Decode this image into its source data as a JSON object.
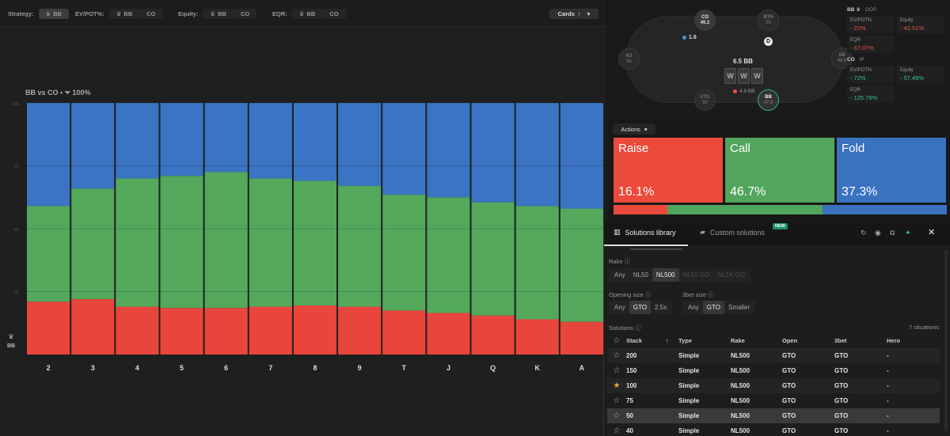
{
  "toolbar": {
    "strategy_label": "Strategy:",
    "strategy_options": [
      "BB"
    ],
    "ev_label": "EV/POT%:",
    "ev_options": [
      "BB",
      "CO"
    ],
    "equity_label": "Equity:",
    "equity_options": [
      "BB",
      "CO"
    ],
    "eqr_label": "EQR:",
    "eqr_options": [
      "BB",
      "CO"
    ],
    "cards_button": "Cards",
    "cards_sort_icon": "↑",
    "cards_caret": "▾"
  },
  "chart_header": {
    "matchup": "BB vs CO",
    "separator": "•",
    "filter_percent": "100%"
  },
  "chart_data": {
    "type": "bar",
    "stacked": true,
    "categories": [
      "2",
      "3",
      "4",
      "5",
      "6",
      "7",
      "8",
      "9",
      "T",
      "J",
      "Q",
      "K",
      "A"
    ],
    "series": [
      {
        "name": "Raise",
        "color": "#e8453c",
        "values": [
          21,
          22,
          19,
          18.5,
          18.5,
          19,
          19.5,
          19,
          17.5,
          16.5,
          15.5,
          14,
          13
        ]
      },
      {
        "name": "Call",
        "color": "#53a85c",
        "values": [
          38,
          44,
          51,
          52.5,
          54,
          51,
          49.5,
          48,
          46,
          46,
          45,
          45,
          45
        ]
      },
      {
        "name": "Fold",
        "color": "#3b74c2",
        "values": [
          41,
          34,
          30,
          29,
          27.5,
          30,
          31,
          33,
          36.5,
          37.5,
          39.5,
          41,
          42
        ]
      }
    ],
    "ylim": [
      0,
      100
    ],
    "yticks": [
      "100",
      "75",
      "50",
      "25"
    ],
    "ytick_values": [
      100,
      75,
      50,
      25
    ],
    "x_axis_player": "BB"
  },
  "table_view": {
    "pot": "6.5 BB",
    "cards": [
      "W",
      "W",
      "W"
    ],
    "pot_bottom": "4.9 BB",
    "co_bet": "1.6",
    "dealer": "D",
    "seats": [
      {
        "name": "CO",
        "stack": "46.2"
      },
      {
        "name": "BTN",
        "stack": "50"
      },
      {
        "name": "SB",
        "stack": "49.5"
      },
      {
        "name": "BB",
        "stack": "47.8"
      },
      {
        "name": "UTG",
        "stack": "50"
      },
      {
        "name": "HJ",
        "stack": "50"
      }
    ]
  },
  "stats": {
    "bb": {
      "player": "BB",
      "position": "OOP",
      "ev_label": "EV/POT%",
      "ev_value": "- 22%",
      "equity_label": "Equity",
      "equity_value": "- 42.51%",
      "eqr_label": "EQR",
      "eqr_value": "- 67.07%"
    },
    "co": {
      "player": "CO",
      "position": "IP",
      "ev_label": "EV/POT%",
      "ev_value": "- 72%",
      "equity_label": "Equity",
      "equity_value": "- 57.49%",
      "eqr_label": "EQR",
      "eqr_value": "- 125.76%"
    }
  },
  "actions": {
    "button_label": "Actions",
    "caret": "▾",
    "items": [
      {
        "name": "Raise",
        "percent": "16.1%",
        "fraction": 0.161,
        "color": "#ec4a3b"
      },
      {
        "name": "Call",
        "percent": "46.7%",
        "fraction": 0.467,
        "color": "#52a55c"
      },
      {
        "name": "Fold",
        "percent": "37.3%",
        "fraction": 0.373,
        "color": "#3a72c0"
      }
    ]
  },
  "library": {
    "tab_solutions": "Solutions library",
    "tab_custom": "Custom solutions",
    "new_badge": "NEW",
    "rake_label": "Rake",
    "rake_options": [
      "Any",
      "NL50",
      "NL500",
      "NL50 GO",
      "NL1K GO"
    ],
    "opening_label": "Opening size",
    "opening_options": [
      "Any",
      "GTO",
      "2.5x"
    ],
    "threebet_label": "3bet size",
    "threebet_options": [
      "Any",
      "GTO",
      "Smaller"
    ],
    "solutions_label": "Solutions",
    "count": "7 situations",
    "columns": [
      "Stack",
      "Type",
      "Rake",
      "Open",
      "3bet",
      "Hero"
    ],
    "sort_icon": "↑",
    "rows": [
      {
        "stack": "200",
        "type": "Simple",
        "rake": "NL500",
        "open": "GTO",
        "threebet": "GTO",
        "hero": "-",
        "starred": false
      },
      {
        "stack": "150",
        "type": "Simple",
        "rake": "NL500",
        "open": "GTO",
        "threebet": "GTO",
        "hero": "-",
        "starred": false
      },
      {
        "stack": "100",
        "type": "Simple",
        "rake": "NL500",
        "open": "GTO",
        "threebet": "GTO",
        "hero": "-",
        "starred": true
      },
      {
        "stack": "75",
        "type": "Simple",
        "rake": "NL500",
        "open": "GTO",
        "threebet": "GTO",
        "hero": "-",
        "starred": false
      },
      {
        "stack": "50",
        "type": "Simple",
        "rake": "NL500",
        "open": "GTO",
        "threebet": "GTO",
        "hero": "-",
        "starred": false
      },
      {
        "stack": "40",
        "type": "Simple",
        "rake": "NL500",
        "open": "GTO",
        "threebet": "GTO",
        "hero": "-",
        "starred": false
      }
    ]
  }
}
